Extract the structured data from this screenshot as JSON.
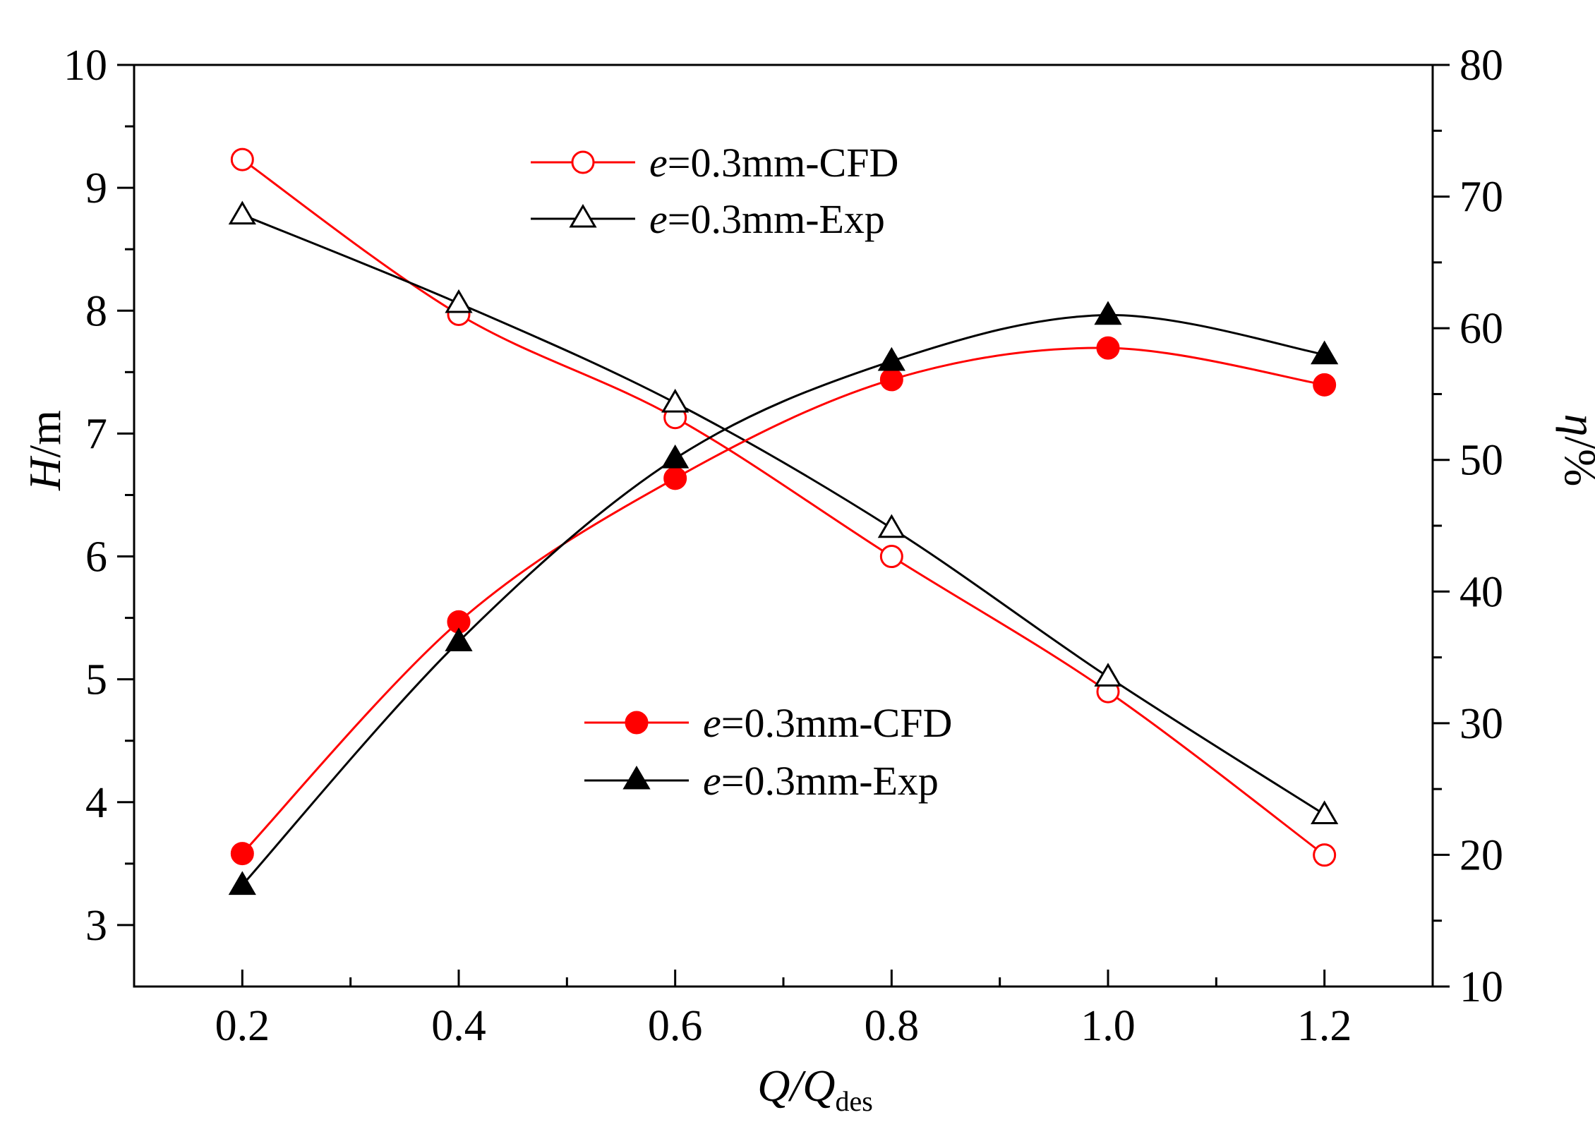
{
  "chart_data": {
    "type": "line",
    "xlabel": {
      "main": "Q/Q",
      "sub": "des"
    },
    "ylabel_left": {
      "italic": "H",
      "rest": "/m"
    },
    "ylabel_right": {
      "italic": "η",
      "rest": "/%"
    },
    "xlim": [
      0.1,
      1.3
    ],
    "ylim_left": [
      2.5,
      10
    ],
    "ylim_right": [
      10,
      80
    ],
    "x_ticks": [
      0.2,
      0.4,
      0.6,
      0.8,
      1.0,
      1.2
    ],
    "x_tick_labels": [
      "0.2",
      "0.4",
      "0.6",
      "0.8",
      "1.0",
      "1.2"
    ],
    "y_left_ticks": [
      3,
      4,
      5,
      6,
      7,
      8,
      9,
      10
    ],
    "y_left_tick_labels": [
      "3",
      "4",
      "5",
      "6",
      "7",
      "8",
      "9",
      "10"
    ],
    "y_right_ticks": [
      10,
      20,
      30,
      40,
      50,
      60,
      70,
      80
    ],
    "y_right_tick_labels": [
      "10",
      "20",
      "30",
      "40",
      "50",
      "60",
      "70",
      "80"
    ],
    "grid": false,
    "series": [
      {
        "name": "e=0.3mm-CFD",
        "axis": "left",
        "marker": "open-circle",
        "color": "#ff0000",
        "x": [
          0.2,
          0.4,
          0.6,
          0.8,
          1.0,
          1.2
        ],
        "values": [
          9.23,
          7.97,
          7.13,
          6.0,
          4.9,
          3.57
        ]
      },
      {
        "name": "e=0.3mm-Exp",
        "axis": "left",
        "marker": "open-triangle",
        "color": "#000000",
        "x": [
          0.2,
          0.4,
          0.6,
          0.8,
          1.0,
          1.2
        ],
        "values": [
          8.78,
          8.06,
          7.25,
          6.23,
          5.02,
          3.9
        ]
      },
      {
        "name": "e=0.3mm-CFD",
        "axis": "right",
        "marker": "filled-circle",
        "color": "#ff0000",
        "x": [
          0.2,
          0.4,
          0.6,
          0.8,
          1.0,
          1.2
        ],
        "values": [
          20.1,
          37.7,
          48.6,
          56.1,
          58.5,
          55.7
        ]
      },
      {
        "name": "e=0.3mm-Exp",
        "axis": "right",
        "marker": "filled-triangle",
        "color": "#000000",
        "x": [
          0.2,
          0.4,
          0.6,
          0.8,
          1.0,
          1.2
        ],
        "values": [
          17.7,
          36.2,
          50.1,
          57.5,
          61.0,
          58.0
        ]
      }
    ],
    "legends": [
      {
        "placement": "top-center",
        "series_index": [
          0,
          1
        ],
        "entries": [
          {
            "italic": "e",
            "rest": "=0.3mm-CFD"
          },
          {
            "italic": "e",
            "rest": "=0.3mm-Exp"
          }
        ]
      },
      {
        "placement": "lower-center",
        "series_index": [
          2,
          3
        ],
        "entries": [
          {
            "italic": "e",
            "rest": "=0.3mm-CFD"
          },
          {
            "italic": "e",
            "rest": "=0.3mm-Exp"
          }
        ]
      }
    ]
  }
}
